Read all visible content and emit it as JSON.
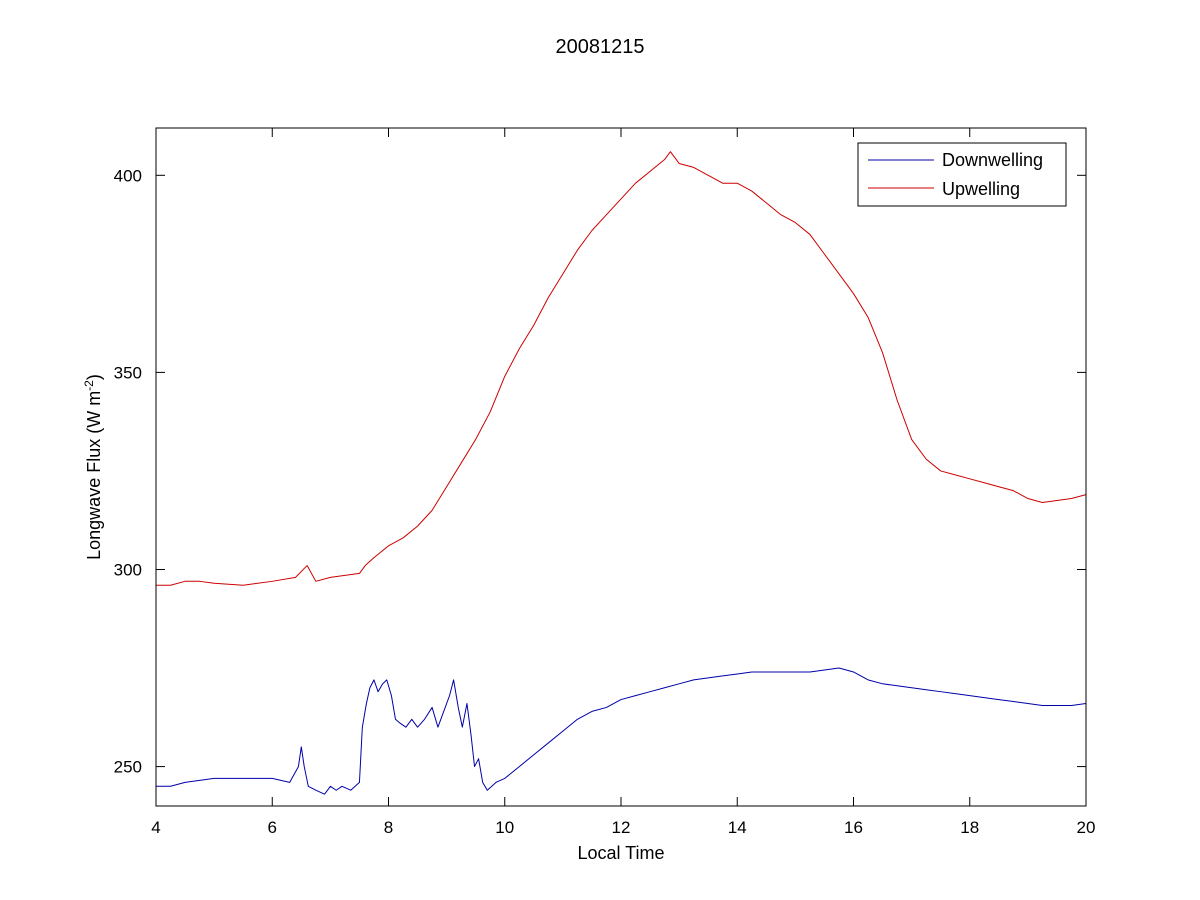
{
  "chart_data": {
    "type": "line",
    "title": "20081215",
    "xlabel": "Local Time",
    "ylabel_main": "Longwave Flux (W m",
    "ylabel_sup": "-2",
    "ylabel_close": ")",
    "xlim": [
      4,
      20
    ],
    "ylim": [
      240,
      412
    ],
    "xticks": [
      4,
      6,
      8,
      10,
      12,
      14,
      16,
      18,
      20
    ],
    "yticks": [
      250,
      300,
      350,
      400
    ],
    "grid": false,
    "legend_position": "top-right",
    "series": [
      {
        "name": "Downwelling",
        "color": "#0000aa",
        "x": [
          4.0,
          4.25,
          4.5,
          4.75,
          5.0,
          5.5,
          6.0,
          6.3,
          6.45,
          6.5,
          6.55,
          6.62,
          6.75,
          6.9,
          7.0,
          7.1,
          7.2,
          7.35,
          7.5,
          7.55,
          7.62,
          7.68,
          7.75,
          7.82,
          7.9,
          7.97,
          8.05,
          8.12,
          8.2,
          8.3,
          8.4,
          8.5,
          8.62,
          8.75,
          8.85,
          8.95,
          9.05,
          9.12,
          9.2,
          9.27,
          9.35,
          9.42,
          9.48,
          9.55,
          9.62,
          9.7,
          9.85,
          10.0,
          10.25,
          10.5,
          10.75,
          11.0,
          11.25,
          11.5,
          11.75,
          12.0,
          12.25,
          12.5,
          12.75,
          13.0,
          13.25,
          13.5,
          13.75,
          14.0,
          14.25,
          14.5,
          14.75,
          15.0,
          15.25,
          15.5,
          15.75,
          16.0,
          16.25,
          16.5,
          16.75,
          17.0,
          17.25,
          17.5,
          17.75,
          18.0,
          18.25,
          18.5,
          18.75,
          19.0,
          19.25,
          19.5,
          19.75,
          20.0
        ],
        "y": [
          245,
          245,
          246,
          246.5,
          247,
          247,
          247,
          246,
          250,
          255,
          250,
          245,
          244,
          243,
          245,
          244,
          245,
          244,
          246,
          260,
          266,
          270,
          272,
          269,
          271,
          272,
          268,
          262,
          261,
          260,
          262,
          260,
          262,
          265,
          260,
          264,
          268,
          272,
          265,
          260,
          266,
          258,
          250,
          252,
          246,
          244,
          246,
          247,
          250,
          253,
          256,
          259,
          262,
          264,
          265,
          267,
          268,
          269,
          270,
          271,
          272,
          272.5,
          273,
          273.5,
          274,
          274,
          274,
          274,
          274,
          274.5,
          275,
          274,
          272,
          271,
          270.5,
          270,
          269.5,
          269,
          268.5,
          268,
          267.5,
          267,
          266.5,
          266,
          265.5,
          265.5,
          265.5,
          266
        ]
      },
      {
        "name": "Upwelling",
        "color": "#cc0000",
        "x": [
          4.0,
          4.25,
          4.5,
          4.75,
          5.0,
          5.5,
          6.0,
          6.4,
          6.6,
          6.75,
          7.0,
          7.25,
          7.5,
          7.6,
          7.75,
          8.0,
          8.25,
          8.5,
          8.75,
          9.0,
          9.25,
          9.5,
          9.75,
          10.0,
          10.25,
          10.5,
          10.75,
          11.0,
          11.25,
          11.5,
          11.75,
          12.0,
          12.25,
          12.5,
          12.75,
          12.85,
          13.0,
          13.25,
          13.5,
          13.75,
          14.0,
          14.25,
          14.5,
          14.75,
          15.0,
          15.25,
          15.5,
          15.75,
          16.0,
          16.25,
          16.5,
          16.75,
          17.0,
          17.25,
          17.5,
          17.75,
          18.0,
          18.25,
          18.5,
          18.75,
          19.0,
          19.25,
          19.5,
          19.75,
          20.0
        ],
        "y": [
          296,
          296,
          297,
          297,
          296.5,
          296,
          297,
          298,
          301,
          297,
          298,
          298.5,
          299,
          301,
          303,
          306,
          308,
          311,
          315,
          321,
          327,
          333,
          340,
          349,
          356,
          362,
          369,
          375,
          381,
          386,
          390,
          394,
          398,
          401,
          404,
          406,
          403,
          402,
          400,
          398,
          398,
          396,
          393,
          390,
          388,
          385,
          380,
          375,
          370,
          364,
          355,
          343,
          333,
          328,
          325,
          324,
          323,
          322,
          321,
          320,
          318,
          317,
          317.5,
          318,
          319
        ]
      }
    ]
  }
}
